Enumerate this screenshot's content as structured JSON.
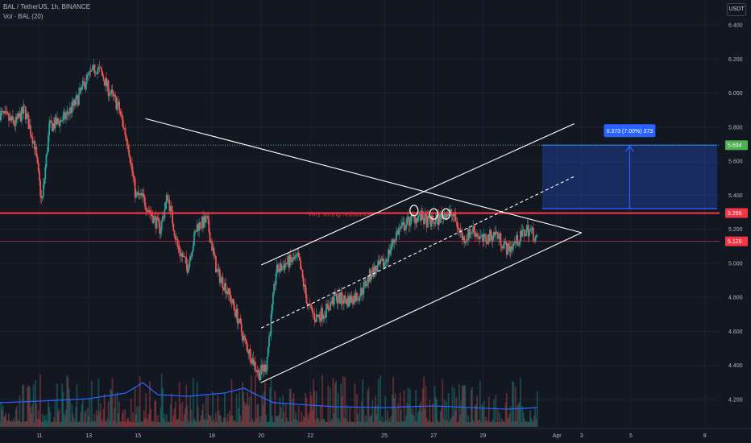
{
  "header": {
    "symbol_line": "BAL / TetherUS, 1h, BINANCE",
    "volume_line": "Vol · BAL (20)"
  },
  "currency_button": "USDT",
  "chart_data": {
    "type": "candlestick",
    "title": "BAL / TetherUS, 1h, BINANCE",
    "ylim": [
      4.1,
      6.5
    ],
    "y_ticks": [
      "6.400",
      "6.200",
      "6.000",
      "5.800",
      "5.600",
      "5.400",
      "5.200",
      "5.000",
      "4.800",
      "4.600",
      "4.400",
      "4.200"
    ],
    "y_tick_values": [
      6.4,
      6.2,
      6.0,
      5.8,
      5.6,
      5.4,
      5.2,
      5.0,
      4.8,
      4.6,
      4.4,
      4.2
    ],
    "x_ticks": [
      "11",
      "13",
      "15",
      "18",
      "20",
      "22",
      "25",
      "27",
      "29",
      "Apr",
      "3",
      "5",
      "8"
    ],
    "x_tick_days": [
      11,
      13,
      15,
      18,
      20,
      22,
      25,
      27,
      29,
      32,
      33,
      35,
      38
    ],
    "xlim_days": [
      9.4,
      38.6
    ],
    "last_data_day": 31.2,
    "price_track": [
      [
        9.4,
        5.88
      ],
      [
        10.0,
        5.82
      ],
      [
        10.4,
        5.9
      ],
      [
        10.8,
        5.7
      ],
      [
        11.1,
        5.35
      ],
      [
        11.4,
        5.8
      ],
      [
        12.0,
        5.85
      ],
      [
        12.5,
        5.95
      ],
      [
        12.9,
        6.08
      ],
      [
        13.3,
        6.15
      ],
      [
        13.5,
        6.12
      ],
      [
        13.8,
        6.02
      ],
      [
        14.2,
        5.92
      ],
      [
        14.6,
        5.7
      ],
      [
        14.9,
        5.4
      ],
      [
        15.2,
        5.38
      ],
      [
        15.5,
        5.3
      ],
      [
        15.9,
        5.2
      ],
      [
        16.2,
        5.4
      ],
      [
        16.6,
        5.1
      ],
      [
        17.0,
        4.98
      ],
      [
        17.4,
        5.22
      ],
      [
        17.8,
        5.25
      ],
      [
        18.2,
        4.95
      ],
      [
        18.6,
        4.85
      ],
      [
        19.0,
        4.7
      ],
      [
        19.3,
        4.55
      ],
      [
        19.6,
        4.45
      ],
      [
        19.9,
        4.35
      ],
      [
        20.2,
        4.4
      ],
      [
        20.6,
        4.95
      ],
      [
        21.0,
        5.0
      ],
      [
        21.5,
        5.03
      ],
      [
        21.9,
        4.75
      ],
      [
        22.2,
        4.68
      ],
      [
        22.6,
        4.72
      ],
      [
        23.0,
        4.8
      ],
      [
        23.5,
        4.78
      ],
      [
        24.0,
        4.82
      ],
      [
        24.5,
        4.95
      ],
      [
        25.0,
        5.0
      ],
      [
        25.5,
        5.18
      ],
      [
        26.0,
        5.25
      ],
      [
        26.4,
        5.28
      ],
      [
        26.8,
        5.24
      ],
      [
        27.1,
        5.25
      ],
      [
        27.5,
        5.3
      ],
      [
        27.8,
        5.28
      ],
      [
        28.2,
        5.14
      ],
      [
        28.6,
        5.2
      ],
      [
        29.0,
        5.13
      ],
      [
        29.5,
        5.18
      ],
      [
        30.0,
        5.08
      ],
      [
        30.5,
        5.15
      ],
      [
        30.8,
        5.2
      ],
      [
        31.0,
        5.18
      ],
      [
        31.2,
        5.13
      ]
    ],
    "horizontal_levels": [
      {
        "price": 5.295,
        "label": "5.295",
        "color": "#f23645",
        "style": "solid-thick"
      },
      {
        "price": 5.694,
        "label": "5.694",
        "color": "#4caf50",
        "style": "dotted"
      },
      {
        "price": 5.129,
        "label": "5.129",
        "color": "#f23645",
        "style": "thin"
      }
    ],
    "resistance_annotation": "Very strong resistance",
    "trendlines": [
      {
        "from": [
          15.3,
          5.85
        ],
        "to": [
          33.0,
          5.18
        ],
        "style": "solid"
      },
      {
        "from": [
          20.0,
          4.3
        ],
        "to": [
          33.0,
          5.18
        ],
        "style": "solid"
      },
      {
        "from": [
          20.0,
          4.99
        ],
        "to": [
          32.7,
          5.82
        ],
        "style": "solid"
      },
      {
        "from": [
          20.0,
          4.62
        ],
        "to": [
          32.7,
          5.51
        ],
        "style": "dashed"
      }
    ],
    "touch_markers": [
      [
        26.2,
        5.31
      ],
      [
        27.0,
        5.29
      ],
      [
        27.5,
        5.29
      ]
    ],
    "target_box": {
      "day_from": 31.4,
      "day_to": 38.5,
      "price_from": 5.321,
      "price_to": 5.694,
      "label": "0.373 (7.00%) 373"
    },
    "volume_ma_track": [
      [
        9.4,
        0.3
      ],
      [
        11.0,
        0.32
      ],
      [
        13.0,
        0.35
      ],
      [
        14.5,
        0.42
      ],
      [
        15.2,
        0.55
      ],
      [
        15.8,
        0.4
      ],
      [
        17.0,
        0.38
      ],
      [
        18.5,
        0.42
      ],
      [
        19.3,
        0.48
      ],
      [
        19.8,
        0.4
      ],
      [
        20.5,
        0.3
      ],
      [
        21.5,
        0.28
      ],
      [
        23.0,
        0.25
      ],
      [
        25.0,
        0.24
      ],
      [
        27.0,
        0.26
      ],
      [
        28.5,
        0.24
      ],
      [
        30.0,
        0.22
      ],
      [
        31.2,
        0.24
      ]
    ],
    "colors": {
      "background": "#131722",
      "up": "#26a69a",
      "down": "#ef5350",
      "grid": "#1e222d",
      "axis_text": "#b2b5be",
      "trendline": "#ffffff",
      "target": "#2962ff",
      "volume_ma": "#2962ff",
      "resistance": "#f23645"
    }
  }
}
